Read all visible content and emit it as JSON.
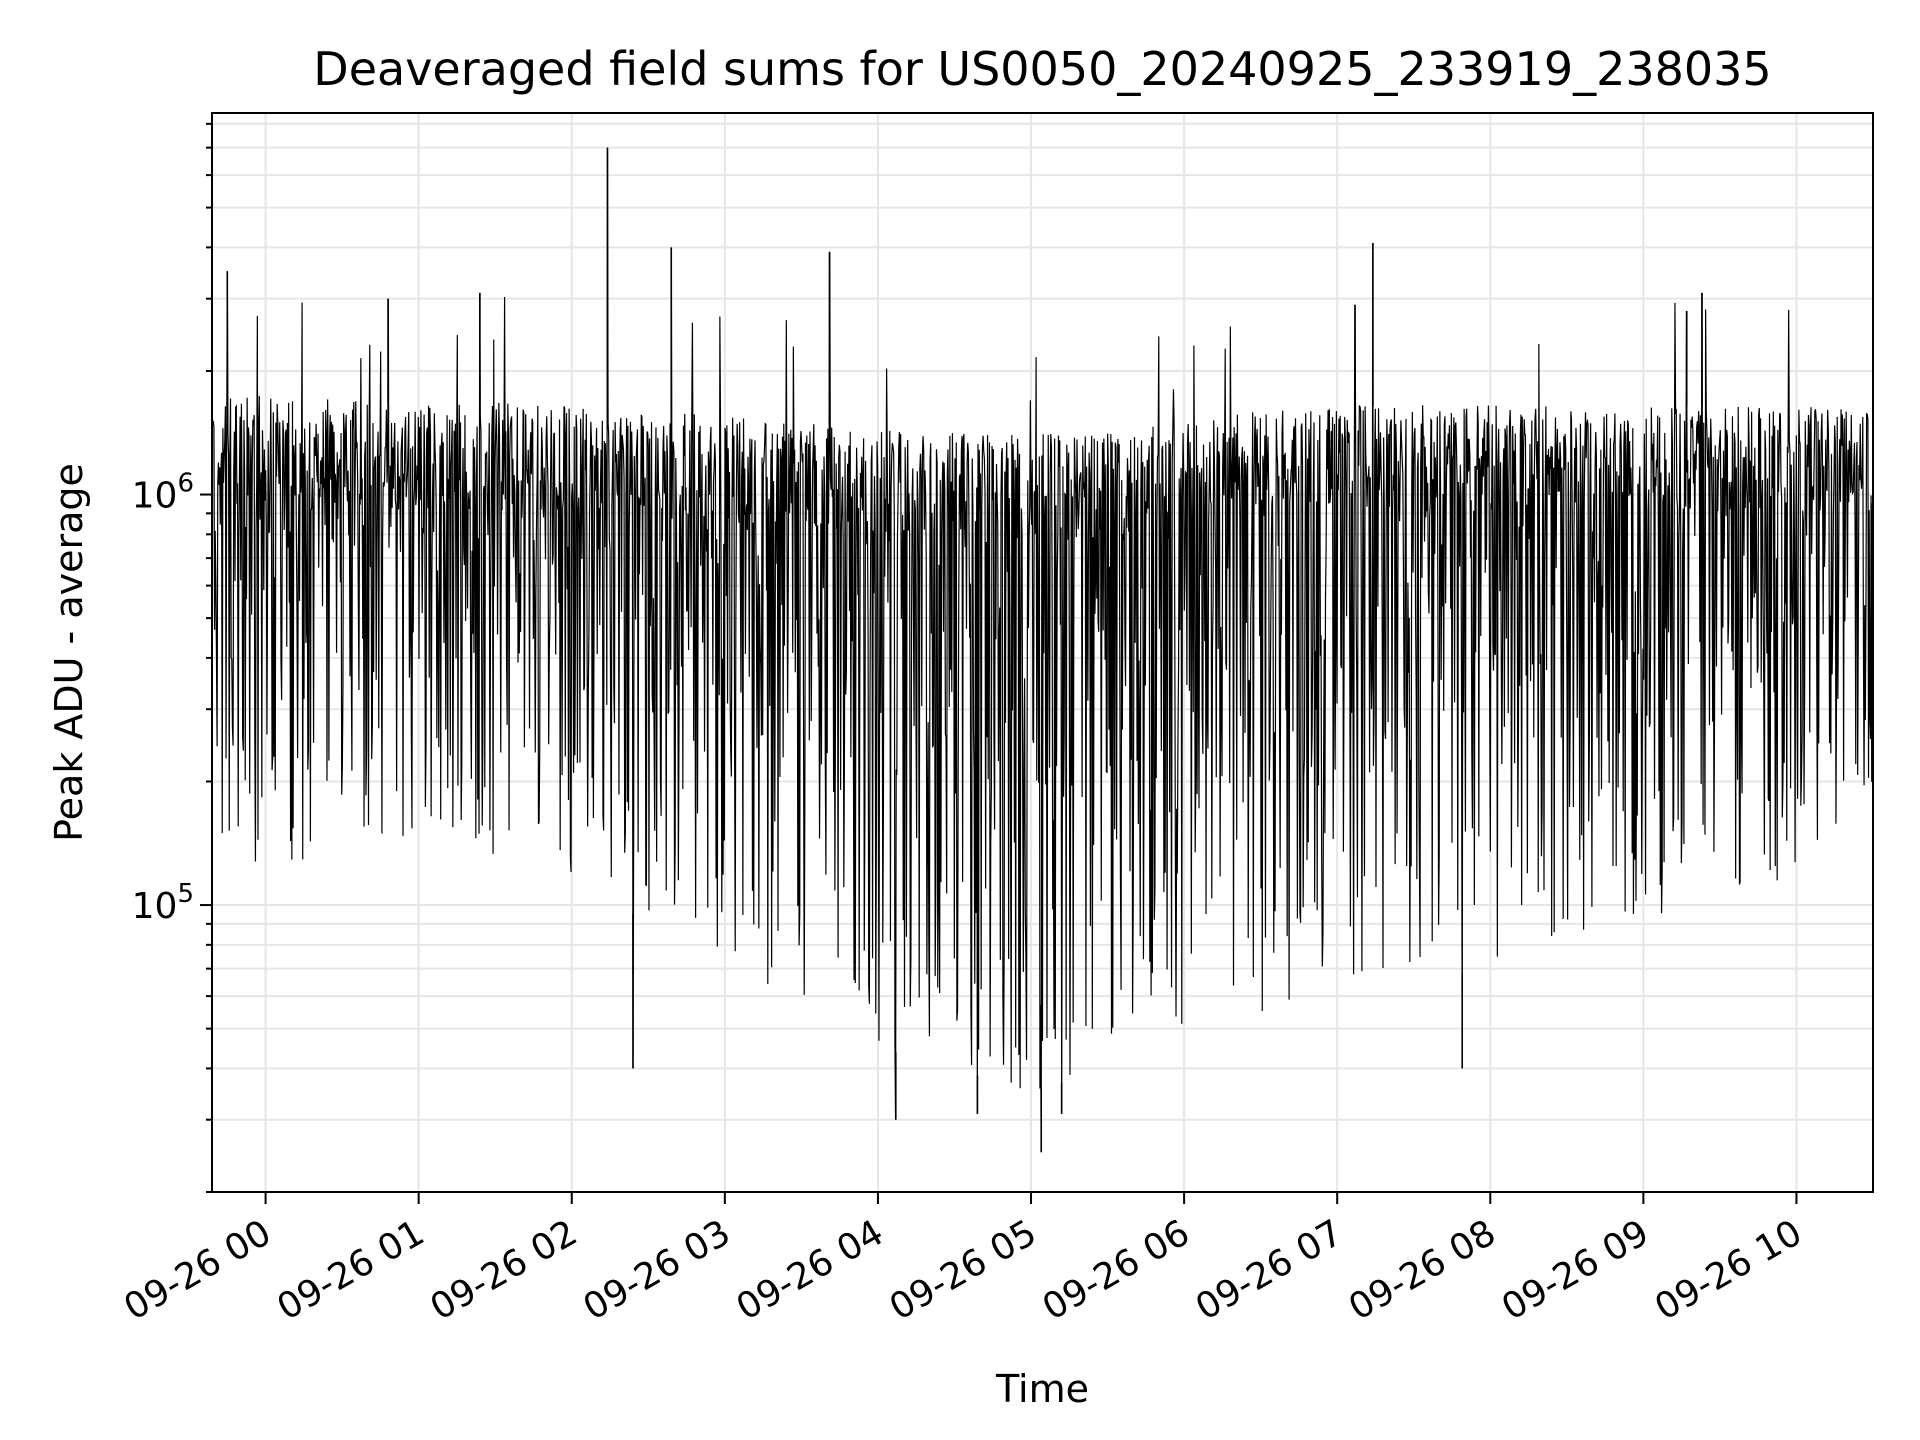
{
  "chart_data": {
    "type": "line",
    "title": "Deaveraged field sums for US0050_20240925_233919_238035",
    "xlabel": "Time",
    "ylabel": "Peak ADU - average",
    "yscale": "log",
    "xlim": [
      "2024-09-25 23:39",
      "2024-09-26 10:30"
    ],
    "ylim": [
      20000,
      8500000
    ],
    "x_ticks": [
      "09-26 00",
      "09-26 01",
      "09-26 02",
      "09-26 03",
      "09-26 04",
      "09-26 05",
      "09-26 06",
      "09-26 07",
      "09-26 08",
      "09-26 09",
      "09-26 10"
    ],
    "y_ticks": [
      {
        "value": 100000,
        "base": "10",
        "exp": "5"
      },
      {
        "value": 1000000,
        "base": "10",
        "exp": "6"
      }
    ],
    "grid": true,
    "line_color": "#000000",
    "grid_color": "#e6e6e6",
    "envelope": {
      "note_free": true,
      "time": [
        "2024-09-25 23:39",
        "2024-09-26 00:00",
        "2024-09-26 00:30",
        "2024-09-26 01:00",
        "2024-09-26 01:30",
        "2024-09-26 02:00",
        "2024-09-26 02:30",
        "2024-09-26 03:00",
        "2024-09-26 03:30",
        "2024-09-26 04:00",
        "2024-09-26 04:30",
        "2024-09-26 05:00",
        "2024-09-26 05:30",
        "2024-09-26 06:00",
        "2024-09-26 06:30",
        "2024-09-26 07:00",
        "2024-09-26 07:30",
        "2024-09-26 08:00",
        "2024-09-26 08:30",
        "2024-09-26 09:00",
        "2024-09-26 09:30",
        "2024-09-26 10:00",
        "2024-09-26 10:30"
      ],
      "upper": [
        1700000,
        1750000,
        1700000,
        1650000,
        1700000,
        1650000,
        1600000,
        1550000,
        1500000,
        1450000,
        1420000,
        1400000,
        1420000,
        1500000,
        1600000,
        1650000,
        1650000,
        1650000,
        1650000,
        1650000,
        1650000,
        1650000,
        1600000
      ],
      "lower": [
        150000,
        120000,
        130000,
        150000,
        130000,
        120000,
        90000,
        70000,
        60000,
        45000,
        40000,
        35000,
        40000,
        50000,
        55000,
        60000,
        65000,
        70000,
        80000,
        90000,
        100000,
        120000,
        200000
      ]
    },
    "spikes": [
      {
        "time": "2024-09-25 23:45",
        "value": 3500000
      },
      {
        "time": "2024-09-26 00:48",
        "value": 3000000
      },
      {
        "time": "2024-09-26 01:24",
        "value": 3100000
      },
      {
        "time": "2024-09-26 02:14",
        "value": 7000000
      },
      {
        "time": "2024-09-26 02:39",
        "value": 4000000
      },
      {
        "time": "2024-09-26 03:41",
        "value": 3900000
      },
      {
        "time": "2024-09-26 07:14",
        "value": 4100000
      },
      {
        "time": "2024-09-26 07:07",
        "value": 2900000
      },
      {
        "time": "2024-09-26 09:23",
        "value": 3100000
      },
      {
        "time": "2024-09-26 09:17",
        "value": 2800000
      }
    ],
    "dips": [
      {
        "time": "2024-09-26 05:04",
        "value": 25000
      },
      {
        "time": "2024-09-26 04:07",
        "value": 30000
      },
      {
        "time": "2024-09-26 04:39",
        "value": 31000
      },
      {
        "time": "2024-09-26 05:12",
        "value": 31000
      },
      {
        "time": "2024-09-26 02:24",
        "value": 40000
      },
      {
        "time": "2024-09-26 07:49",
        "value": 40000
      }
    ]
  }
}
